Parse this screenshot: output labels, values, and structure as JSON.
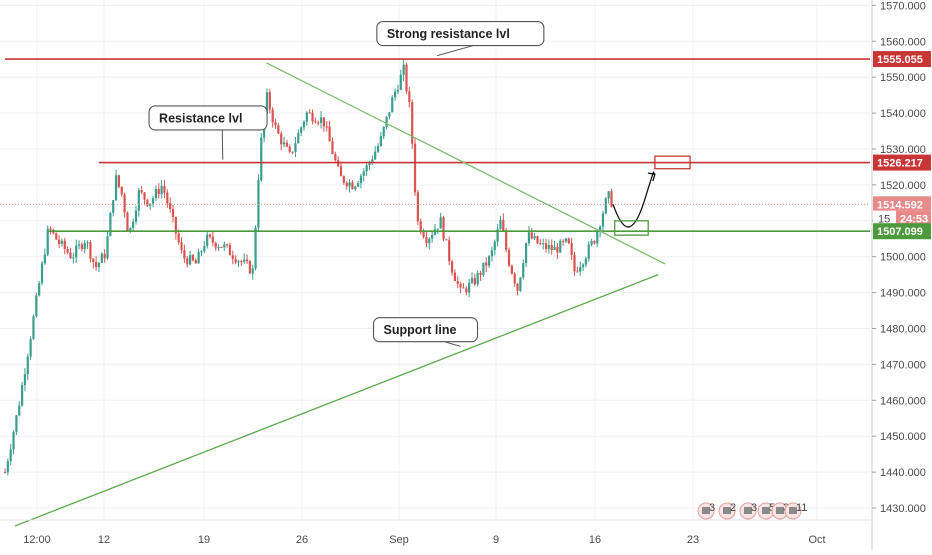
{
  "chart_data": {
    "type": "candlestick",
    "title": "",
    "xlabel": "",
    "ylabel": "",
    "ylim": [
      1423,
      1575
    ],
    "grid": true,
    "x_ticks": [
      "12:00",
      "12",
      "19",
      "26",
      "Sep",
      "9",
      "16",
      "23",
      "Oct"
    ],
    "y_ticks": [
      "1430.000",
      "1440.000",
      "1450.000",
      "1460.000",
      "1470.000",
      "1480.000",
      "1490.000",
      "1500.000",
      "1510.000",
      "1520.000",
      "1530.000",
      "1540.000",
      "1550.000",
      "1560.000",
      "1570.000"
    ],
    "price_path": [
      {
        "x": 0.0,
        "y": 1440
      },
      {
        "x": 0.4,
        "y": 1458
      },
      {
        "x": 0.8,
        "y": 1480
      },
      {
        "x": 1.1,
        "y": 1497
      },
      {
        "x": 1.3,
        "y": 1508
      },
      {
        "x": 1.6,
        "y": 1504
      },
      {
        "x": 2.0,
        "y": 1500
      },
      {
        "x": 2.4,
        "y": 1505
      },
      {
        "x": 2.7,
        "y": 1497
      },
      {
        "x": 3.0,
        "y": 1501
      },
      {
        "x": 3.3,
        "y": 1522
      },
      {
        "x": 3.5,
        "y": 1517
      },
      {
        "x": 3.7,
        "y": 1506
      },
      {
        "x": 4.0,
        "y": 1518
      },
      {
        "x": 4.3,
        "y": 1515
      },
      {
        "x": 4.7,
        "y": 1520
      },
      {
        "x": 5.0,
        "y": 1510
      },
      {
        "x": 5.3,
        "y": 1500
      },
      {
        "x": 5.7,
        "y": 1498
      },
      {
        "x": 6.0,
        "y": 1505
      },
      {
        "x": 6.5,
        "y": 1503
      },
      {
        "x": 7.0,
        "y": 1499
      },
      {
        "x": 7.4,
        "y": 1496
      },
      {
        "x": 7.6,
        "y": 1528
      },
      {
        "x": 7.8,
        "y": 1545
      },
      {
        "x": 8.1,
        "y": 1535
      },
      {
        "x": 8.5,
        "y": 1528
      },
      {
        "x": 9.0,
        "y": 1540
      },
      {
        "x": 9.5,
        "y": 1538
      },
      {
        "x": 10.0,
        "y": 1522
      },
      {
        "x": 10.4,
        "y": 1520
      },
      {
        "x": 10.8,
        "y": 1525
      },
      {
        "x": 11.2,
        "y": 1532
      },
      {
        "x": 11.6,
        "y": 1545
      },
      {
        "x": 11.9,
        "y": 1552
      },
      {
        "x": 12.1,
        "y": 1540
      },
      {
        "x": 12.3,
        "y": 1510
      },
      {
        "x": 12.6,
        "y": 1505
      },
      {
        "x": 13.0,
        "y": 1510
      },
      {
        "x": 13.3,
        "y": 1498
      },
      {
        "x": 13.6,
        "y": 1490
      },
      {
        "x": 14.0,
        "y": 1493
      },
      {
        "x": 14.5,
        "y": 1500
      },
      {
        "x": 14.8,
        "y": 1510
      },
      {
        "x": 15.0,
        "y": 1500
      },
      {
        "x": 15.3,
        "y": 1491
      },
      {
        "x": 15.6,
        "y": 1506
      },
      {
        "x": 16.0,
        "y": 1503
      },
      {
        "x": 16.4,
        "y": 1502
      },
      {
        "x": 16.8,
        "y": 1504
      },
      {
        "x": 17.0,
        "y": 1496
      },
      {
        "x": 17.3,
        "y": 1500
      },
      {
        "x": 17.6,
        "y": 1505
      },
      {
        "x": 18.0,
        "y": 1517
      },
      {
        "x": 18.15,
        "y": 1514.592
      }
    ],
    "projection_path": [
      {
        "x": 18.15,
        "y": 1514.592
      },
      {
        "x": 18.4,
        "y": 1508
      },
      {
        "x": 18.7,
        "y": 1509
      },
      {
        "x": 19.1,
        "y": 1516
      },
      {
        "x": 19.4,
        "y": 1523
      }
    ],
    "trendlines": [
      {
        "name": "descending-resistance",
        "points": [
          {
            "x": 7.8,
            "y": 1554
          },
          {
            "x": 19.7,
            "y": 1498
          }
        ],
        "color": "#7cbd6e"
      },
      {
        "name": "support-line",
        "points": [
          {
            "x": 0.3,
            "y": 1425
          },
          {
            "x": 19.5,
            "y": 1495
          }
        ],
        "color": "#5aa84a"
      }
    ],
    "horizontal_levels": [
      {
        "name": "strong-resistance",
        "y": 1555.055,
        "color": "#c83535",
        "x_start": 0.0
      },
      {
        "name": "resistance",
        "y": 1526.217,
        "color": "#c83535",
        "x_start": 2.8
      },
      {
        "name": "support",
        "y": 1507.099,
        "color": "#4c9a3c",
        "x_start": 1.3
      }
    ],
    "current_price_line": {
      "y": 1514.592,
      "color": "#e58f8f"
    },
    "target_boxes": [
      {
        "name": "resistance-target-box",
        "x0": 19.4,
        "x1": 20.45,
        "y0": 1524.5,
        "y1": 1528.0,
        "color": "#c83535"
      },
      {
        "name": "support-zone-box",
        "x0": 18.2,
        "x1": 19.2,
        "y0": 1506.0,
        "y1": 1510.0,
        "color": "#4c9a3c"
      }
    ],
    "callouts": [
      {
        "name": "strong-resistance-callout",
        "text": "Strong resistance lvl",
        "box_x": 11.1,
        "box_y": 1565.5,
        "pointer_x": 12.9,
        "pointer_y": 1556
      },
      {
        "name": "resistance-callout",
        "text": "Resistance lvl",
        "box_x": 4.3,
        "box_y": 1542,
        "pointer_x": 6.5,
        "pointer_y": 1527
      },
      {
        "name": "support-callout",
        "text": "Support line",
        "box_x": 11.0,
        "box_y": 1483,
        "pointer_x": 13.6,
        "pointer_y": 1475
      }
    ],
    "price_tags": [
      {
        "name": "strong-resistance-price-tag",
        "text": "1555.055",
        "y": 1555.055,
        "color": "#c83535"
      },
      {
        "name": "resistance-price-tag",
        "text": "1526.217",
        "y": 1526.217,
        "color": "#c83535"
      },
      {
        "name": "current-price-tag",
        "text": "1514.592",
        "y": 1514.592,
        "color": "#e88a8a"
      },
      {
        "name": "countdown-tag",
        "text": "24:53",
        "y": 1510.6,
        "color": "#e88a8a",
        "prefix": "15"
      },
      {
        "name": "support-price-tag",
        "text": "1507.099",
        "y": 1507.099,
        "color": "#4c9a3c"
      }
    ],
    "event_markers": [
      "3",
      "2",
      "3",
      "5",
      "36",
      "11"
    ]
  }
}
